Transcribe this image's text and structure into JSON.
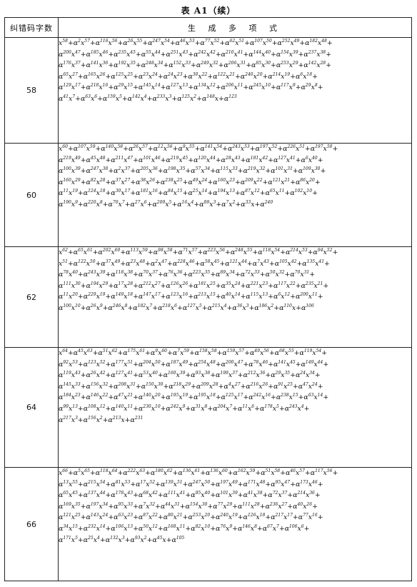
{
  "caption": "表 A1（续）",
  "header": {
    "col1": "纠错码字数",
    "col2": "生 成 多 项 式"
  },
  "rows": [
    {
      "n": "58",
      "lines": [
        "x^58+α^2x^57+α^116x^56+α^26x^55+α^247x^54+α^46x^53+α^77x^52+α^62x^51+α^107x^50+α^252x^49+α^182x^48+",
        "α^200x^47+α^185x^46+α^235x^45+α^55x^44+α^251x^43+α^242x^42+α^210x^41+α^144x^40+α^154x^39+α^237x^38+",
        "α^176x^37+α^141x^36+α^192x^35+α^248x^34+α^152x^33+α^249x^32+α^206x^31+α^85x^30+α^253x^29+α^142x^28+",
        "α^65x^27+α^165x^26+α^125x^25+α^23x^24+α^24x^23+α^30x^22+α^122x^21+α^240x^20+α^214x^19+α^6x^18+",
        "α^129x^17+α^218x^16+α^29x^15+α^145x^14+α^127x^13+α^134x^12+α^206x^11+α^245x^10+α^117x^9+α^29x^8+",
        "α^41x^7+α^63x^6+α^159x^5+α^142x^4+α^233x^3+α^125x^2+α^148x+α^123"
      ]
    },
    {
      "n": "60",
      "lines": [
        "x^60+α^107x^59+α^140x^58+α^26x^57+α^12x^56+α^9x^55+α^141x^54+α^243x^53+α^197x^52+α^226x^51+α^197x^50+",
        "α^219x^49+α^45x^48+α^211x^47+α^101x^46+α^219x^45+α^120x^44+α^28x^43+α^181x^42+α^127x^41+α^6x^40+",
        "α^100x^39+α^247x^38+α^2x^37+α^205x^36+α^198x^35+α^57x^34+α^115x^33+α^219x^32+α^101x^31+α^109x^30+",
        "α^160x^29+α^82x^28+α^37x^27+α^38x^26+α^238x^25+α^49x^24+α^160x^23+α^209x^22+α^121x^21+α^86x^20+",
        "α^11x^19+α^124x^18+α^30x^17+α^181x^16+α^84x^15+α^25x^14+α^194x^13+α^87x^12+α^65x^11+α^102x^10+",
        "α^190x^9+α^220x^8+α^70x^7+α^27x^6+α^209x^5+α^16x^4+α^89x^3+α^7x^2+α^33x+α^240"
      ]
    },
    {
      "n": "62",
      "lines": [
        "x^62+α^65x^61+α^202x^60+α^113x^59+α^98x^58+α^71x^57+α^223x^56+α^248x^55+α^118x^54+α^214x^53+α^94x^52+",
        "x^51+α^122x^50+α^37x^49+α^23x^48+α^2x^47+α^228x^46+α^58x^45+α^121x^44+α^7x^43+α^105x^42+α^135x^41+",
        "α^78x^40+α^243x^39+α^118x^38+α^70x^37+α^76x^36+α^223x^35+α^89x^34+α^72x^33+α^50x^32+α^70x^31+",
        "α^111x^30+α^194x^29+α^17x^28+α^212x^27+α^126x^26+α^181x^25+α^35x^24+α^221x^23+α^117x^22+α^235x^21+",
        "α^11x^20+α^229x^19+α^149x^18+α^147x^17+α^123x^16+α^213x^15+α^40x^14+α^115x^13+α^6x^12+α^200x^11+",
        "α^100x^10+α^26x^9+α^246x^8+α^182x^7+α^218x^6+α^127x^5+α^215x^4+α^36x^3+α^186x^2+α^110x+α^106"
      ]
    },
    {
      "n": "64",
      "lines": [
        "x^64+α^45x^63+α^51x^62+α^175x^61+α^9x^60+α^7x^59+α^158x^58+α^159x^57+α^49x^56+α^68x^55+α^119x^54+",
        "α^92x^53+α^123x^52+α^177x^51+α^204x^50+α^187x^49+α^254x^48+α^200x^47+α^78x^46+α^141x^45+α^149x^44+",
        "α^119x^43+α^26x^42+α^127x^41+α^53x^40+α^160x^39+α^93x^38+α^199x^37+α^212x^36+α^29x^35+α^24x^34+",
        "α^145x^33+α^156x^32+α^208x^31+α^150x^30+α^218x^29+α^209x^28+α^4x^27+α^216x^26+α^91x^25+α^47x^24+",
        "α^184x^23+α^146x^22+α^47x^21+α^140x^20+α^195x^19+α^195x^18+α^125x^17+α^242x^16+α^238x^15+α^63x^14+",
        "α^99x^13+α^108x^12+α^140x^11+α^230x^10+α^242x^9+α^31x^8+α^204x^7+α^11x^6+α^178x^5+α^243x^4+",
        "α^217x^3+α^156x^2+α^213x+α^231"
      ]
    },
    {
      "n": "66",
      "lines": [
        "x^66+α^5x^65+α^118x^64+α^222x^63+α^180x^62+α^136x^61+α^136x^60+α^162x^59+α^51x^58+α^46x^57+α^117x^56+",
        "α^13x^55+α^215x^54+α^81x^53+α^17x^52+α^139x^51+α^247x^50+α^197x^49+α^171x^48+α^95x^47+α^173x^46+",
        "α^65x^45+α^137x^44+α^178x^43+α^68x^42+α^111x^41+α^95x^40+α^101x^39+α^41x^38+α^72x^37+α^214x^36+",
        "α^169x^35+α^197x^34+α^95x^33+α^7x^32+α^44x^31+α^154x^30+α^77x^29+α^111x^28+α^236x^27+α^40x^26+",
        "α^121x^25+α^143x^24+α^63x^23+α^87x^22+α^80x^21+α^253x^20+α^240x^19+α^126x^18+α^217x^17+α^77x^16+",
        "α^34x^15+α^232x^14+α^106x^13+α^50x^12+α^168x^11+α^82x^10+α^76x^9+α^146x^8+α^67x^7+α^106x^6+",
        "α^171x^5+α^25x^4+α^132x^3+α^93x^2+α^45x+α^105"
      ]
    }
  ]
}
